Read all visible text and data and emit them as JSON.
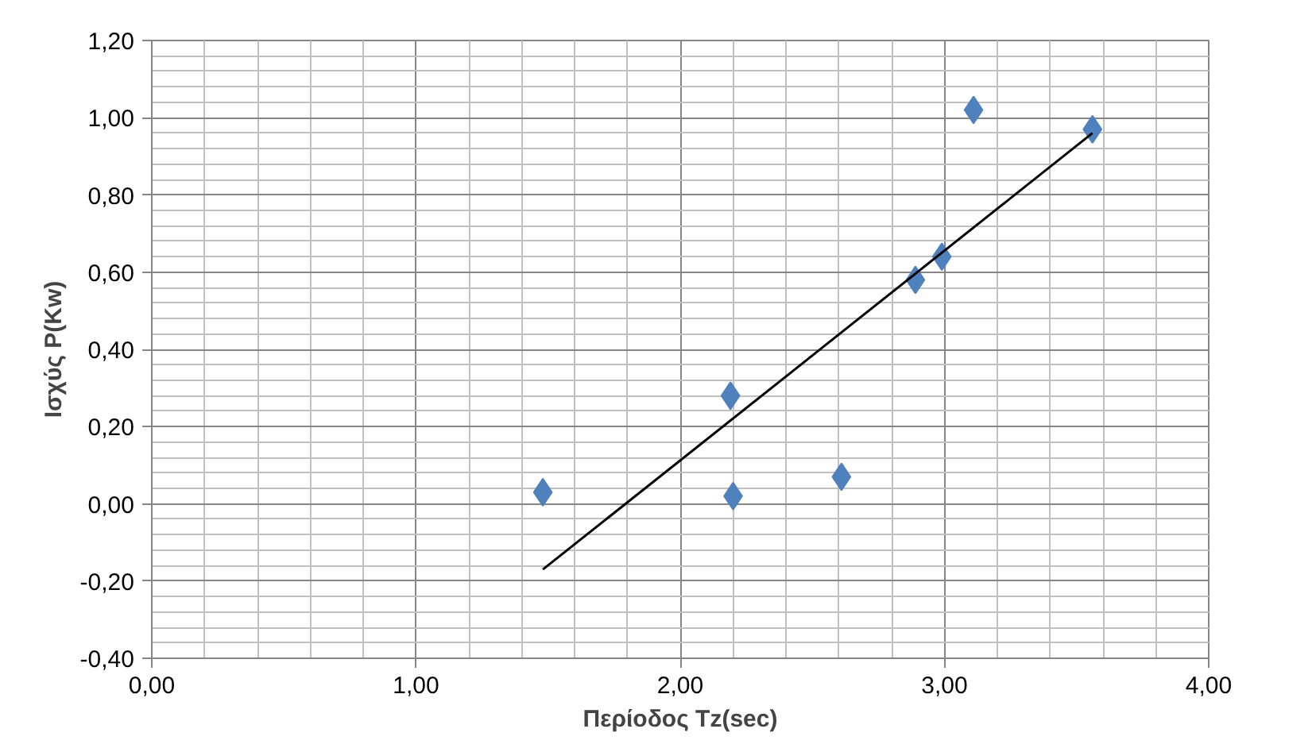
{
  "chart_data": {
    "type": "scatter",
    "xlabel": "Περίοδος Tz(sec)",
    "ylabel": "Ισχύς P(Kw)",
    "xlim": [
      0,
      4
    ],
    "ylim": [
      -0.4,
      1.2
    ],
    "xticks": [
      {
        "value": 0,
        "label": "0,00"
      },
      {
        "value": 1,
        "label": "1,00"
      },
      {
        "value": 2,
        "label": "2,00"
      },
      {
        "value": 3,
        "label": "3,00"
      },
      {
        "value": 4,
        "label": "4,00"
      }
    ],
    "yticks": [
      {
        "value": -0.4,
        "label": "-0,40"
      },
      {
        "value": -0.2,
        "label": "-0,20"
      },
      {
        "value": 0,
        "label": "0,00"
      },
      {
        "value": 0.2,
        "label": "0,20"
      },
      {
        "value": 0.4,
        "label": "0,40"
      },
      {
        "value": 0.6,
        "label": "0,60"
      },
      {
        "value": 0.8,
        "label": "0,80"
      },
      {
        "value": 1.0,
        "label": "1,00"
      },
      {
        "value": 1.2,
        "label": "1,20"
      }
    ],
    "grid": true,
    "series": [
      {
        "marker": "diamond",
        "color": "#4f81bd",
        "x": [
          1.48,
          2.19,
          2.2,
          2.61,
          2.89,
          2.99,
          3.11,
          3.56
        ],
        "values": [
          0.03,
          0.28,
          0.02,
          0.07,
          0.58,
          0.64,
          1.02,
          0.97
        ]
      },
      {
        "type": "line",
        "color": "#000000",
        "x": [
          1.48,
          3.56
        ],
        "values": [
          -0.17,
          0.96
        ]
      }
    ]
  }
}
